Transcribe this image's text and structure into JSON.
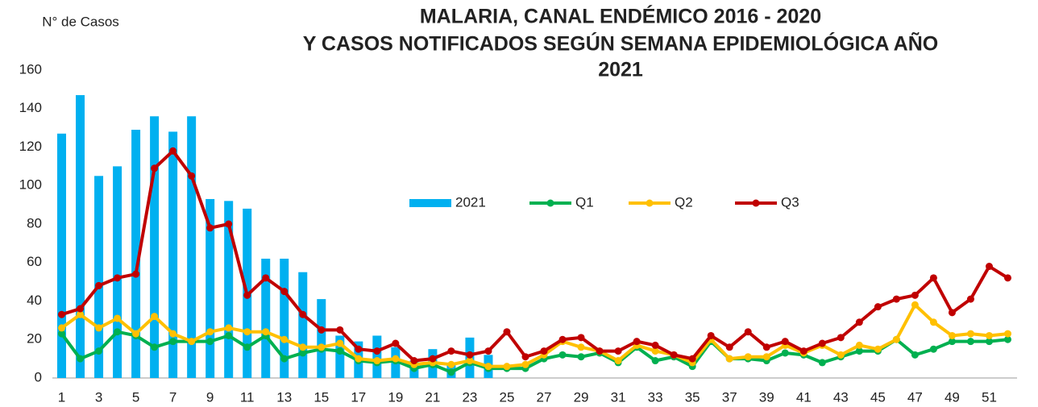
{
  "chart_data": {
    "type": "bar-line",
    "title": [
      "MALARIA, CANAL ENDÉMICO 2016 - 2020",
      "Y CASOS NOTIFICADOS SEGÚN SEMANA EPIDEMIOLÓGICA AÑO",
      "2021"
    ],
    "y_label": "N° de Casos",
    "categories": [
      1,
      null,
      3,
      null,
      5,
      null,
      7,
      null,
      9,
      null,
      11,
      null,
      13,
      null,
      15,
      null,
      17,
      null,
      19,
      null,
      21,
      null,
      23,
      null,
      25,
      null,
      27,
      null,
      29,
      null,
      31,
      null,
      33,
      null,
      35,
      null,
      37,
      null,
      39,
      null,
      41,
      null,
      43,
      null,
      45,
      null,
      47,
      null,
      49,
      null,
      51,
      null
    ],
    "ylim": [
      0,
      160
    ],
    "yticks": [
      0,
      20,
      40,
      60,
      80,
      100,
      120,
      140,
      160
    ],
    "grid": false,
    "legend": "center",
    "series": [
      {
        "name": "2021",
        "type": "bar",
        "color": "#00b0f0",
        "values": [
          127,
          147,
          105,
          110,
          129,
          136,
          128,
          136,
          93,
          92,
          88,
          62,
          62,
          55,
          41,
          22,
          19,
          22,
          16,
          9,
          15,
          7,
          21,
          12,
          null,
          null,
          null,
          null,
          null,
          null,
          null,
          null,
          null,
          null,
          null,
          null,
          null,
          null,
          null,
          null,
          null,
          null,
          null,
          null,
          null,
          null,
          null,
          null,
          null,
          null,
          null,
          null
        ]
      },
      {
        "name": "Q1",
        "type": "line",
        "color": "#00b050",
        "values": [
          23,
          10,
          14,
          24,
          22,
          16,
          19,
          19,
          19,
          22,
          16,
          22,
          10,
          13,
          15,
          14,
          9,
          8,
          9,
          5,
          7,
          3,
          8,
          5,
          5,
          5,
          10,
          12,
          11,
          13,
          8,
          16,
          9,
          11,
          6,
          19,
          10,
          10,
          9,
          13,
          12,
          8,
          11,
          14,
          14,
          20,
          12,
          15,
          19,
          19,
          19,
          20
        ]
      },
      {
        "name": "Q2",
        "type": "line",
        "color": "#ffc000",
        "values": [
          26,
          33,
          26,
          31,
          23,
          32,
          23,
          19,
          24,
          26,
          24,
          24,
          20,
          16,
          16,
          18,
          10,
          9,
          10,
          7,
          8,
          7,
          9,
          6,
          6,
          7,
          12,
          19,
          16,
          14,
          9,
          17,
          14,
          12,
          8,
          20,
          10,
          11,
          11,
          17,
          13,
          17,
          12,
          17,
          15,
          20,
          38,
          29,
          22,
          23,
          22,
          23
        ]
      },
      {
        "name": "Q3",
        "type": "line",
        "color": "#c00000",
        "values": [
          33,
          36,
          48,
          52,
          54,
          109,
          118,
          105,
          78,
          80,
          43,
          52,
          45,
          33,
          25,
          25,
          15,
          14,
          18,
          9,
          10,
          14,
          12,
          14,
          24,
          11,
          14,
          20,
          21,
          14,
          14,
          19,
          17,
          12,
          10,
          22,
          16,
          24,
          16,
          19,
          14,
          18,
          21,
          29,
          37,
          41,
          43,
          52,
          34,
          41,
          58,
          52
        ]
      }
    ]
  }
}
